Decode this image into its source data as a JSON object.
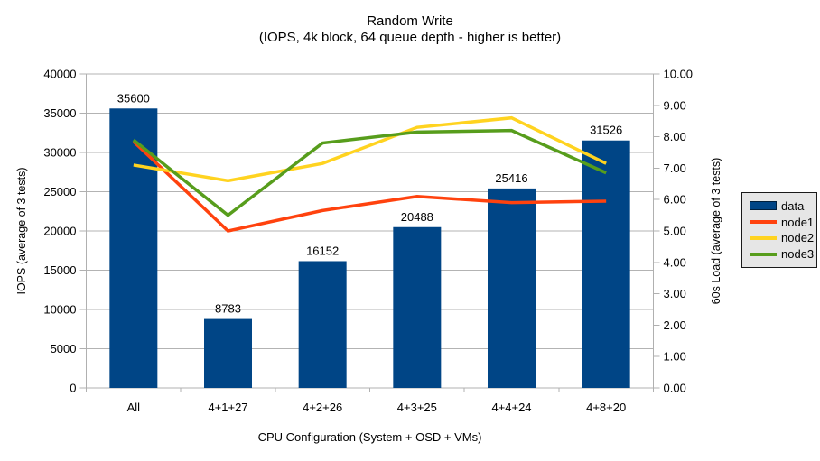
{
  "chart_data": {
    "type": "combo-bar-line",
    "title": "Random Write",
    "subtitle": "(IOPS, 4k block, 64 queue depth - higher is better)",
    "xlabel": "CPU Configuration (System + OSD + VMs)",
    "ylabel_left": "IOPS (average of 3 tests)",
    "ylabel_right": "60s Load (average of 3 tests)",
    "categories": [
      "All",
      "4+1+27",
      "4+2+26",
      "4+3+25",
      "4+4+24",
      "4+8+20"
    ],
    "ylim_left": [
      0,
      40000
    ],
    "ylim_right": [
      0,
      10
    ],
    "left_tick_labels": [
      "0",
      "5000",
      "10000",
      "15000",
      "20000",
      "25000",
      "30000",
      "35000",
      "40000"
    ],
    "right_tick_labels": [
      "0.00",
      "1.00",
      "2.00",
      "3.00",
      "4.00",
      "5.00",
      "6.00",
      "7.00",
      "8.00",
      "9.00",
      "10.00"
    ],
    "grid": "horizontal",
    "legend_position": "right",
    "series": [
      {
        "name": "data",
        "type": "bar",
        "axis": "left",
        "color": "#004586",
        "values": [
          35600,
          8783,
          16152,
          20488,
          25416,
          31526
        ],
        "data_labels": [
          "35600",
          "8783",
          "16152",
          "20488",
          "25416",
          "31526"
        ]
      },
      {
        "name": "node1",
        "type": "line",
        "axis": "right",
        "color": "#FF420E",
        "values": [
          7.85,
          5.0,
          5.65,
          6.1,
          5.9,
          5.95
        ]
      },
      {
        "name": "node2",
        "type": "line",
        "axis": "right",
        "color": "#FFD320",
        "values": [
          7.1,
          6.6,
          7.15,
          8.3,
          8.6,
          7.15
        ]
      },
      {
        "name": "node3",
        "type": "line",
        "axis": "right",
        "color": "#579D1C",
        "values": [
          7.9,
          5.5,
          7.8,
          8.15,
          8.2,
          6.85
        ]
      }
    ]
  },
  "colors": {
    "background": "#FFFFFF",
    "gridline": "#B3B3B3",
    "axis": "#B0B0B0",
    "text": "#000000",
    "legend_background": "#E6E6E6",
    "legend_border": "#1A1A1A"
  }
}
